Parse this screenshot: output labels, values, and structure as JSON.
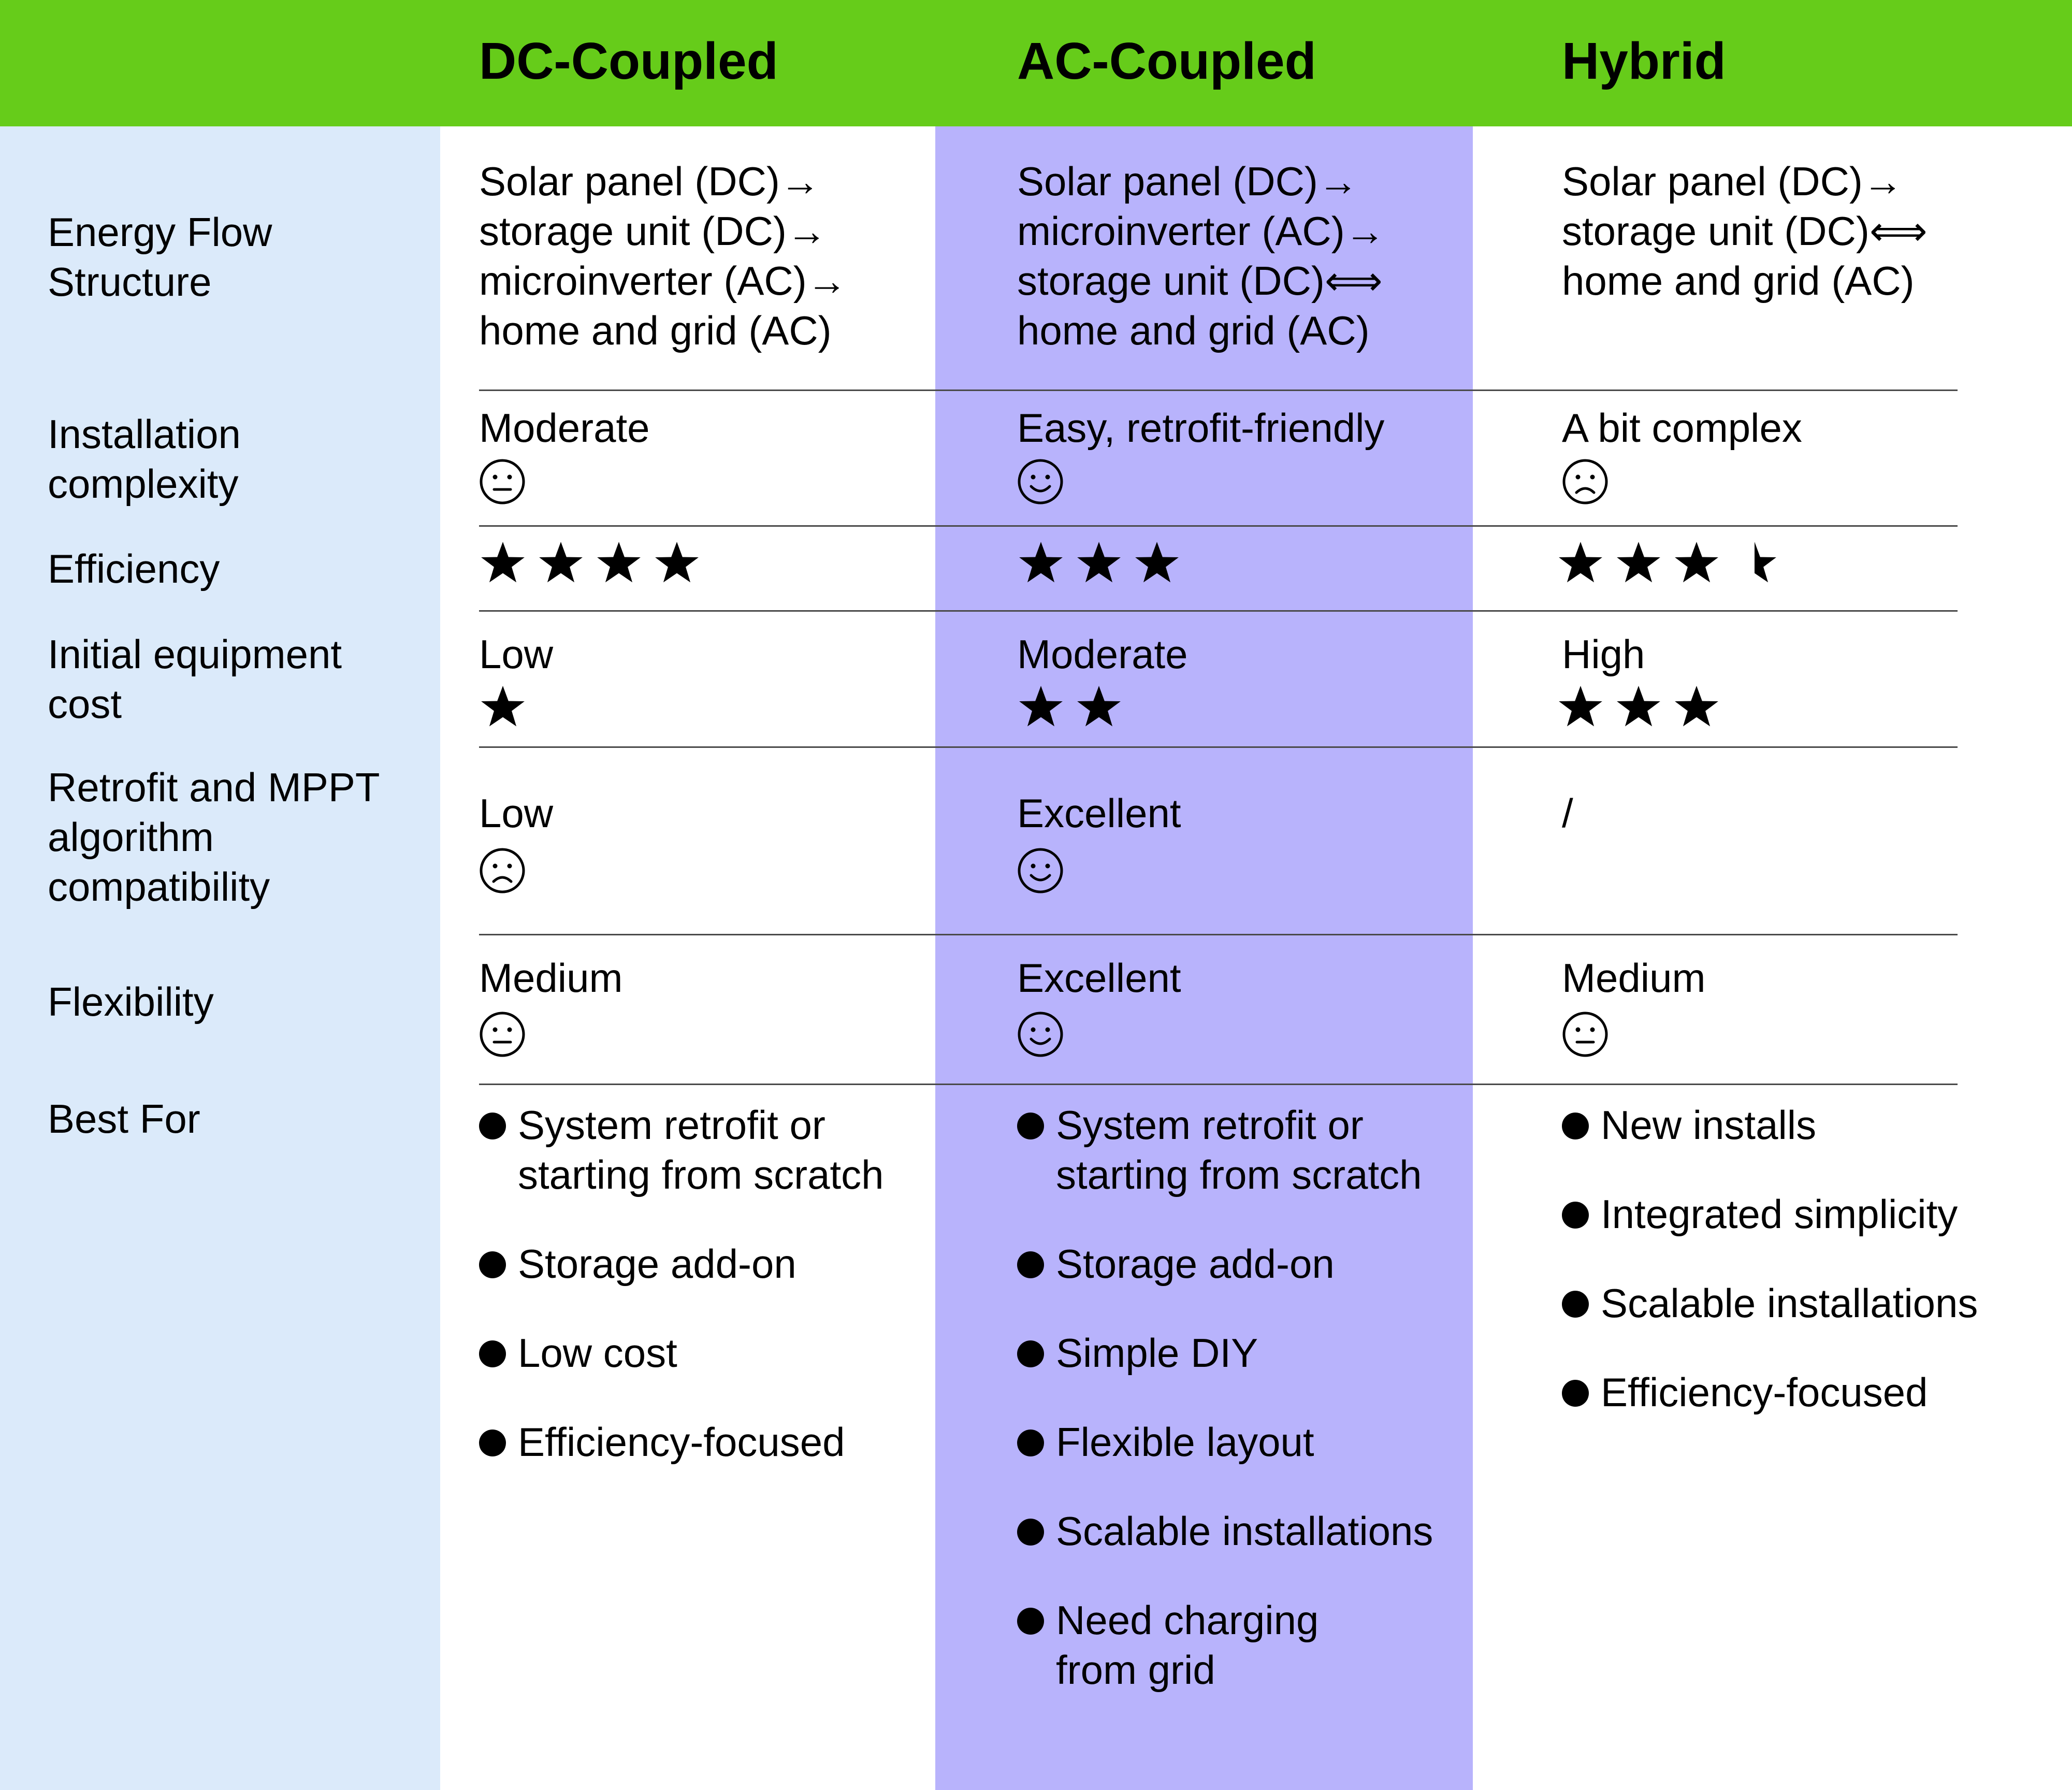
{
  "columns": {
    "dc": "DC-Coupled",
    "ac": "AC-Coupled",
    "hybrid": "Hybrid"
  },
  "rows": {
    "energy_flow": {
      "label": "Energy Flow\nStructure",
      "dc": "Solar panel (DC)→\nstorage unit (DC)→\nmicroinverter (AC)→\nhome and grid (AC)",
      "ac": "Solar panel (DC)→\nmicroinverter (AC)→\nstorage unit (DC)⟺\nhome and grid (AC)",
      "hybrid": "Solar panel (DC)→\nstorage unit (DC)⟺\nhome and grid (AC)"
    },
    "installation": {
      "label": "Installation\ncomplexity",
      "dc": "Moderate",
      "ac": "Easy, retrofit-friendly",
      "hybrid": "A bit complex",
      "dc_icon": "neutral-face-icon",
      "ac_icon": "smiling-face-icon",
      "hybrid_icon": "sad-face-icon"
    },
    "efficiency": {
      "label": "Efficiency",
      "dc_stars": 4,
      "ac_stars": 3,
      "hybrid_stars": 3.5
    },
    "cost": {
      "label": "Initial equipment\ncost",
      "dc": "Low",
      "ac": "Moderate",
      "hybrid": "High",
      "dc_stars": 1,
      "ac_stars": 2,
      "hybrid_stars": 3
    },
    "retrofit": {
      "label": "Retrofit and MPPT\nalgorithm\ncompatibility",
      "dc": "Low",
      "ac": "Excellent",
      "hybrid": "/",
      "dc_icon": "sad-face-icon",
      "ac_icon": "smiling-face-icon"
    },
    "flexibility": {
      "label": "Flexibility",
      "dc": "Medium",
      "ac": "Excellent",
      "hybrid": "Medium",
      "dc_icon": "neutral-face-icon",
      "ac_icon": "smiling-face-icon",
      "hybrid_icon": "neutral-face-icon"
    },
    "best_for": {
      "label": "Best For",
      "dc": [
        "System retrofit or\nstarting from scratch",
        "Storage add-on",
        "Low cost",
        "Efficiency-focused"
      ],
      "ac": [
        "System retrofit or\nstarting from scratch",
        "Storage add-on",
        "Simple DIY",
        "Flexible layout",
        "Scalable installations",
        "Need charging\nfrom  grid"
      ],
      "hybrid": [
        "New installs",
        "Integrated simplicity",
        "Scalable installations",
        "Efficiency-focused"
      ]
    }
  },
  "colors": {
    "header_green": "#66cc1a",
    "label_column_blue": "#dbeafa",
    "ac_column_purple": "#b8b3fc"
  }
}
